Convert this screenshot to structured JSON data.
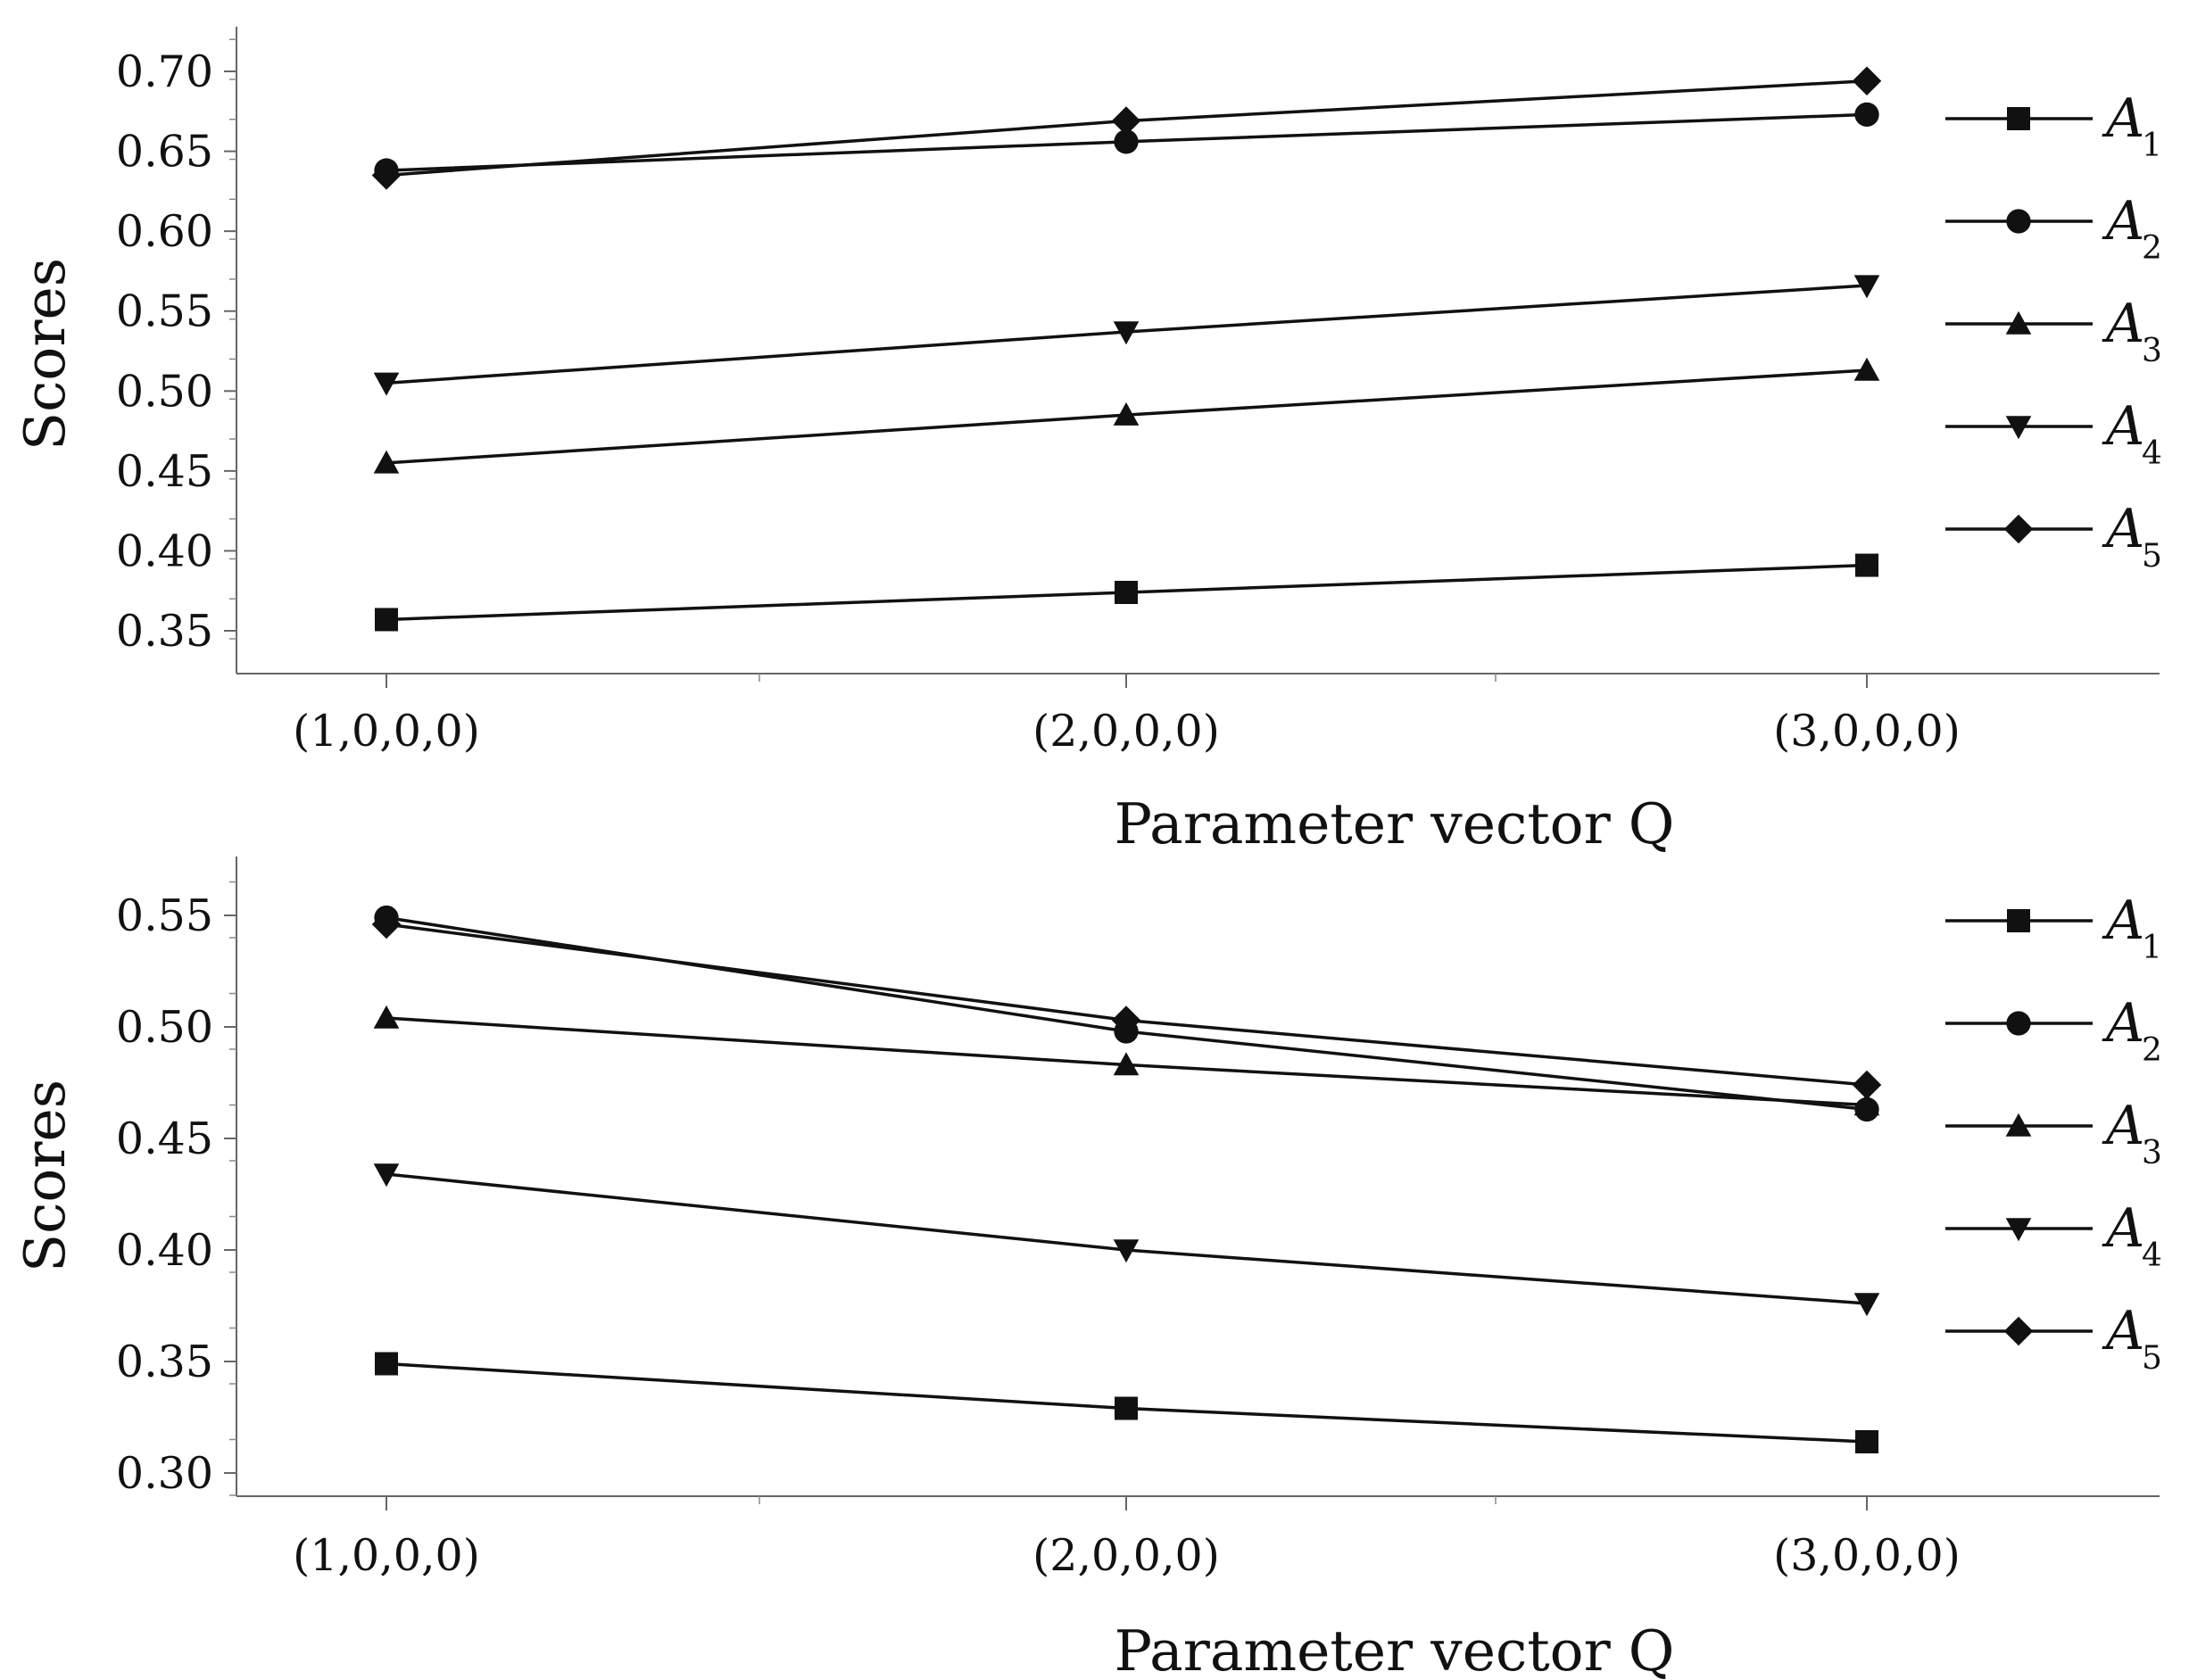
{
  "chart_data": [
    {
      "type": "line",
      "categories": [
        "(1,0,0,0)",
        "(2,0,0,0)",
        "(3,0,0,0)"
      ],
      "xlabel": "Parameter vector Q",
      "ylabel": "Scores",
      "ylim": [
        0.32,
        0.72
      ],
      "yticks": [
        0.35,
        0.4,
        0.45,
        0.5,
        0.55,
        0.6,
        0.65,
        0.7
      ],
      "ytick_labels": [
        "0.35",
        "0.40",
        "0.45",
        "0.50",
        "0.55",
        "0.60",
        "0.65",
        "0.70"
      ],
      "legend_position": "right",
      "grid": false,
      "series": [
        {
          "name": "A",
          "subscript": "1",
          "marker": "square",
          "values": [
            0.357,
            0.374,
            0.391
          ]
        },
        {
          "name": "A",
          "subscript": "2",
          "marker": "circle",
          "values": [
            0.638,
            0.656,
            0.673
          ]
        },
        {
          "name": "A",
          "subscript": "3",
          "marker": "triangle-up",
          "values": [
            0.455,
            0.485,
            0.513
          ]
        },
        {
          "name": "A",
          "subscript": "4",
          "marker": "triangle-down",
          "values": [
            0.505,
            0.537,
            0.566
          ]
        },
        {
          "name": "A",
          "subscript": "5",
          "marker": "diamond",
          "values": [
            0.635,
            0.669,
            0.694
          ]
        }
      ]
    },
    {
      "type": "line",
      "categories": [
        "(1,0,0,0)",
        "(2,0,0,0)",
        "(3,0,0,0)"
      ],
      "xlabel": "Parameter vector Q",
      "ylabel": "Scores",
      "ylim": [
        0.29,
        0.575
      ],
      "yticks": [
        0.3,
        0.35,
        0.4,
        0.45,
        0.5,
        0.55
      ],
      "ytick_labels": [
        "0.30",
        "0.35",
        "0.40",
        "0.45",
        "0.50",
        "0.55"
      ],
      "legend_position": "right",
      "grid": false,
      "series": [
        {
          "name": "A",
          "subscript": "1",
          "marker": "square",
          "values": [
            0.349,
            0.329,
            0.314
          ]
        },
        {
          "name": "A",
          "subscript": "2",
          "marker": "circle",
          "values": [
            0.549,
            0.498,
            0.463
          ]
        },
        {
          "name": "A",
          "subscript": "3",
          "marker": "triangle-up",
          "values": [
            0.504,
            0.483,
            0.465
          ]
        },
        {
          "name": "A",
          "subscript": "4",
          "marker": "triangle-down",
          "values": [
            0.434,
            0.4,
            0.376
          ]
        },
        {
          "name": "A",
          "subscript": "5",
          "marker": "diamond",
          "values": [
            0.546,
            0.503,
            0.474
          ]
        }
      ]
    }
  ],
  "colors": {
    "line": "#111111",
    "background": "#ffffff"
  }
}
